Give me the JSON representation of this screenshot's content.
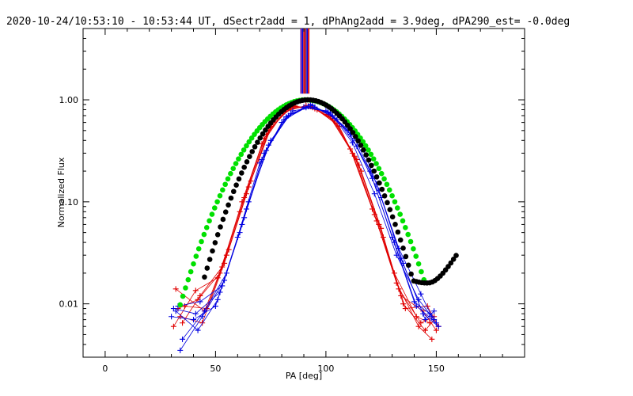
{
  "chart_data": {
    "type": "line",
    "title": "2020-10-24/10:53:10 - 10:53:44 UT, dSectr2add = 1, dPhAng2add = 3.9deg, dPA290_est= -0.0deg",
    "xlabel": "PA [deg]",
    "ylabel": "Normalized Flux",
    "xlim": [
      -10,
      190
    ],
    "ylim": [
      0.003,
      5.0
    ],
    "y_scale": "log",
    "grid": false,
    "x_ticks": [
      0,
      50,
      100,
      150
    ],
    "x_tick_labels": [
      "0",
      "50",
      "100",
      "150"
    ],
    "y_ticks": [
      0.01,
      0.1,
      1.0
    ],
    "y_tick_labels": [
      "0.01",
      "0.10",
      "1.00"
    ],
    "colors": {
      "red": "#e00000",
      "blue": "#0000e0",
      "green": "#00e000",
      "black": "#000000",
      "dark_red": "#8a2040",
      "purple": "#7a1fa0"
    },
    "vertical_lines": [
      {
        "x": 88.7,
        "color": "#7a1fa0"
      },
      {
        "x": 89.4,
        "color": "#0000e0"
      },
      {
        "x": 90.1,
        "color": "#e00000"
      },
      {
        "x": 90.8,
        "color": "#8a2040"
      },
      {
        "x": 91.5,
        "color": "#0000e0"
      },
      {
        "x": 92.2,
        "color": "#e00000"
      }
    ],
    "series": [
      {
        "color": "red",
        "marker": "plus",
        "x": [
          32,
          45,
          55,
          65,
          75,
          85,
          95,
          105,
          115,
          125,
          135,
          145,
          149
        ],
        "y": [
          0.014,
          0.0085,
          0.03,
          0.14,
          0.55,
          0.86,
          0.82,
          0.58,
          0.23,
          0.055,
          0.01,
          0.0055,
          0.007
        ]
      },
      {
        "color": "red",
        "marker": "plus",
        "x": [
          33,
          42,
          52,
          62,
          72,
          82,
          92,
          102,
          112,
          122,
          132,
          142,
          148
        ],
        "y": [
          0.009,
          0.011,
          0.02,
          0.1,
          0.42,
          0.8,
          0.87,
          0.68,
          0.3,
          0.075,
          0.016,
          0.006,
          0.0045
        ]
      },
      {
        "color": "red",
        "marker": "plus",
        "x": [
          34,
          44,
          54,
          64,
          74,
          84,
          94,
          104,
          114,
          124,
          134,
          144,
          150
        ],
        "y": [
          0.0075,
          0.0065,
          0.025,
          0.12,
          0.5,
          0.84,
          0.84,
          0.62,
          0.26,
          0.06,
          0.012,
          0.0085,
          0.0055
        ]
      },
      {
        "color": "red",
        "marker": "plus",
        "x": [
          31,
          41,
          51,
          61,
          71,
          81,
          91,
          101,
          111,
          121,
          131,
          141,
          147
        ],
        "y": [
          0.006,
          0.0135,
          0.018,
          0.08,
          0.37,
          0.76,
          0.88,
          0.72,
          0.33,
          0.085,
          0.02,
          0.0075,
          0.0065
        ]
      },
      {
        "color": "red",
        "marker": "plus",
        "x": [
          36,
          46,
          56,
          66,
          76,
          86,
          96,
          106,
          116,
          126,
          136,
          146,
          151
        ],
        "y": [
          0.0095,
          0.009,
          0.034,
          0.16,
          0.6,
          0.87,
          0.8,
          0.55,
          0.2,
          0.045,
          0.009,
          0.0095,
          0.006
        ]
      },
      {
        "color": "red",
        "marker": "plus",
        "x": [
          35,
          43,
          53,
          63,
          73,
          83,
          93,
          103,
          113,
          123,
          133,
          143,
          149
        ],
        "y": [
          0.0065,
          0.012,
          0.023,
          0.11,
          0.46,
          0.82,
          0.86,
          0.65,
          0.28,
          0.065,
          0.014,
          0.0065,
          0.0075
        ]
      },
      {
        "color": "blue",
        "marker": "plus",
        "x": [
          31,
          41,
          52,
          62,
          72,
          82,
          92,
          102,
          112,
          122,
          132,
          142,
          149
        ],
        "y": [
          0.009,
          0.008,
          0.013,
          0.06,
          0.3,
          0.68,
          0.86,
          0.75,
          0.38,
          0.12,
          0.03,
          0.011,
          0.007
        ]
      },
      {
        "color": "blue",
        "marker": "plus",
        "x": [
          33,
          43,
          53,
          63,
          73,
          83,
          93,
          103,
          113,
          123,
          133,
          143,
          148
        ],
        "y": [
          0.0095,
          0.0105,
          0.015,
          0.07,
          0.32,
          0.7,
          0.9,
          0.7,
          0.42,
          0.15,
          0.035,
          0.0125,
          0.0075
        ]
      },
      {
        "color": "blue",
        "marker": "plus",
        "x": [
          32,
          42,
          51,
          61,
          71,
          81,
          91,
          101,
          111,
          121,
          131,
          141,
          150
        ],
        "y": [
          0.0085,
          0.0055,
          0.011,
          0.05,
          0.26,
          0.64,
          0.84,
          0.76,
          0.46,
          0.17,
          0.04,
          0.0095,
          0.0065
        ]
      },
      {
        "color": "blue",
        "marker": "plus",
        "x": [
          30,
          40,
          50,
          60,
          70,
          80,
          90,
          100,
          110,
          120,
          130,
          140,
          147
        ],
        "y": [
          0.0075,
          0.007,
          0.0095,
          0.045,
          0.24,
          0.6,
          0.85,
          0.78,
          0.5,
          0.2,
          0.045,
          0.0105,
          0.008
        ]
      },
      {
        "color": "blue",
        "marker": "plus",
        "x": [
          34,
          44,
          54,
          64,
          74,
          84,
          94,
          104,
          115,
          124,
          134,
          144,
          151
        ],
        "y": [
          0.0035,
          0.0075,
          0.017,
          0.085,
          0.36,
          0.73,
          0.88,
          0.66,
          0.42,
          0.13,
          0.028,
          0.008,
          0.006
        ]
      },
      {
        "color": "blue",
        "marker": "plus",
        "x": [
          35,
          45,
          55,
          65,
          75,
          85,
          95,
          105,
          114,
          125,
          135,
          145,
          149
        ],
        "y": [
          0.0045,
          0.0085,
          0.02,
          0.1,
          0.4,
          0.78,
          0.85,
          0.64,
          0.35,
          0.11,
          0.025,
          0.007,
          0.0085
        ]
      },
      {
        "color": "green",
        "marker": "dot",
        "function": "exp(-((x-91)/26.5)^2) normalized peak 1.0",
        "x_range": [
          34,
          145
        ]
      },
      {
        "color": "black",
        "marker": "dot",
        "function": "model peak 1.0 at x=92, min 0.016 at x=146, rising to 0.032 at x=160",
        "x_range": [
          45,
          160
        ]
      }
    ]
  }
}
